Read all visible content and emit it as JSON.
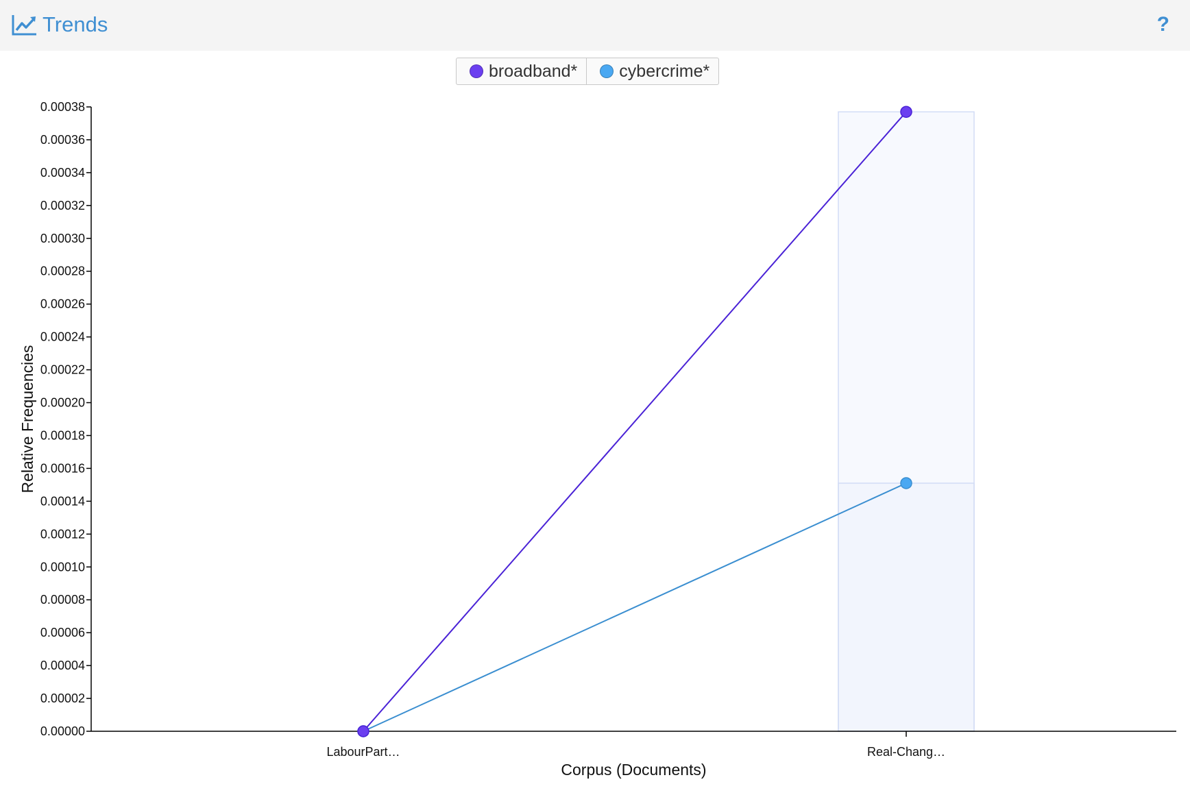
{
  "header": {
    "title": "Trends",
    "help": "?"
  },
  "colors": {
    "accent": "#3f8fd2",
    "header_bg": "#f4f4f4"
  },
  "chart_data": {
    "type": "line",
    "categories": [
      "LabourPart…",
      "Real-Chang…"
    ],
    "series": [
      {
        "name": "broadband*",
        "color": "#6b3ff0",
        "line_color": "#4a22d6",
        "values": [
          0.0,
          0.000377
        ]
      },
      {
        "name": "cybercrime*",
        "color": "#4aa8f2",
        "line_color": "#3a8ed0",
        "values": [
          0.0,
          0.000151
        ]
      }
    ],
    "xlabel": "Corpus (Documents)",
    "ylabel": "Relative Frequencies",
    "ylim": [
      0,
      0.00038
    ],
    "yticks": [
      "0.00000",
      "0.00002",
      "0.00004",
      "0.00006",
      "0.00008",
      "0.00010",
      "0.00012",
      "0.00014",
      "0.00016",
      "0.00018",
      "0.00020",
      "0.00022",
      "0.00024",
      "0.00026",
      "0.00028",
      "0.00030",
      "0.00032",
      "0.00034",
      "0.00036",
      "0.00038"
    ],
    "highlighted_category": "Real-Chang…",
    "legend": "top-center",
    "grid": false
  }
}
